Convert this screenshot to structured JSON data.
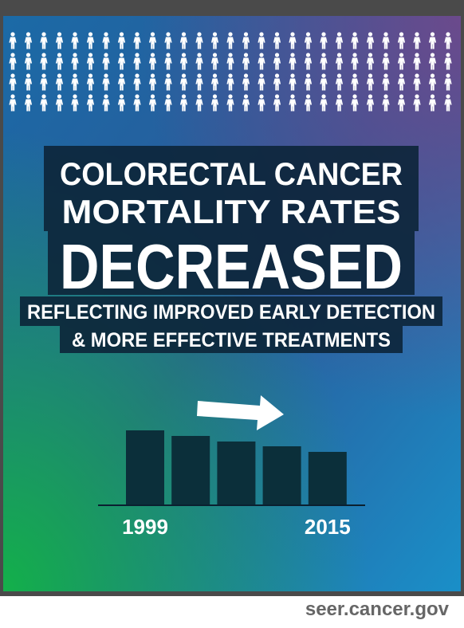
{
  "title_lines": [
    "COLORECTAL CANCER",
    "MORTALITY RATES"
  ],
  "headline": "DECREASED",
  "subtitle_lines": [
    "REFLECTING IMPROVED EARLY DETECTION",
    "& MORE EFFECTIVE TREATMENTS"
  ],
  "footer": "seer.cancer.gov",
  "chart_data": {
    "type": "bar",
    "categories": [
      "1999",
      null,
      null,
      null,
      "2015"
    ],
    "values": [
      93,
      86,
      79,
      73,
      66
    ],
    "ylim": [
      0,
      100
    ],
    "color": "#0b2f3a"
  }
}
